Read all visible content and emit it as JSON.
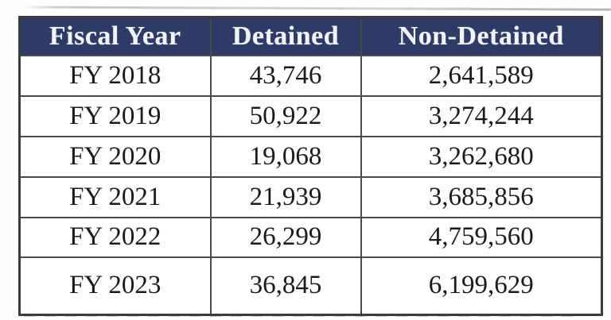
{
  "colors": {
    "header_bg": "#2d3b66",
    "header_text": "#f2f3f7",
    "body_text": "#1b1b1b",
    "border": "#4a4a4a",
    "page_bg": "#ffffff"
  },
  "table": {
    "columns": [
      "Fiscal Year",
      "Detained",
      "Non-Detained"
    ],
    "rows": [
      [
        "FY 2018",
        "43,746",
        "2,641,589"
      ],
      [
        "FY 2019",
        "50,922",
        "3,274,244"
      ],
      [
        "FY 2020",
        "19,068",
        "3,262,680"
      ],
      [
        "FY 2021",
        "21,939",
        "3,685,856"
      ],
      [
        "FY 2022",
        "26,299",
        "4,759,560"
      ],
      [
        "FY 2023",
        "36,845",
        "6,199,629"
      ]
    ]
  },
  "chart_data": {
    "type": "table",
    "title": "",
    "categories": [
      "FY 2018",
      "FY 2019",
      "FY 2020",
      "FY 2021",
      "FY 2022",
      "FY 2023"
    ],
    "series": [
      {
        "name": "Detained",
        "values": [
          43746,
          50922,
          19068,
          21939,
          26299,
          36845
        ]
      },
      {
        "name": "Non-Detained",
        "values": [
          2641589,
          3274244,
          3262680,
          3685856,
          4759560,
          6199629
        ]
      }
    ],
    "layout": {
      "header_position": "top",
      "grid": true,
      "legend": "none"
    }
  }
}
